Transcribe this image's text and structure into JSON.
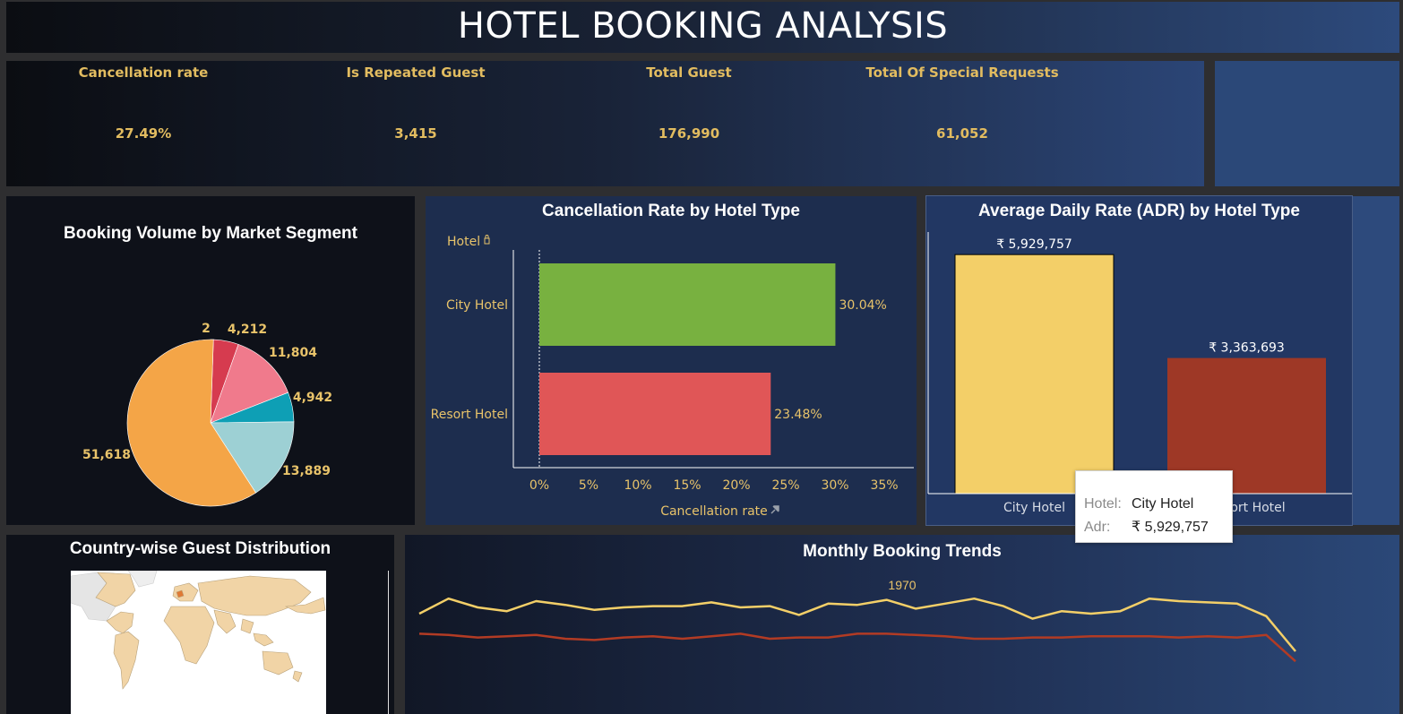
{
  "title": "HOTEL BOOKING ANALYSIS",
  "kpis": [
    {
      "label": "Cancellation rate",
      "value": "27.49%"
    },
    {
      "label": "Is Repeated Guest",
      "value": "3,415"
    },
    {
      "label": "Total Guest",
      "value": "176,990"
    },
    {
      "label": "Total Of Special Requests",
      "value": "61,052"
    }
  ],
  "pie": {
    "title": "Booking Volume by Market Segment",
    "slices": [
      {
        "label": "2",
        "value": 2,
        "color": "#a3c83c"
      },
      {
        "label": "4,212",
        "value": 4212,
        "color": "#d63b4f"
      },
      {
        "label": "11,804",
        "value": 11804,
        "color": "#f07a8c"
      },
      {
        "label": "4,942",
        "value": 4942,
        "color": "#0e9fb5"
      },
      {
        "label": "13,889",
        "value": 13889,
        "color": "#9dd0d4"
      },
      {
        "label": "51,618",
        "value": 51618,
        "color": "#f4a547"
      }
    ]
  },
  "cancel_chart": {
    "title": "Cancellation Rate by Hotel Type",
    "y_header": "Hotel",
    "x_label": "Cancellation rate",
    "ticks": [
      "0%",
      "5%",
      "10%",
      "15%",
      "20%",
      "25%",
      "30%",
      "35%"
    ],
    "bars": [
      {
        "category": "City Hotel",
        "value": 30.04,
        "label": "30.04%",
        "color": "#78b140"
      },
      {
        "category": "Resort Hotel",
        "value": 23.48,
        "label": "23.48%",
        "color": "#e05657"
      }
    ]
  },
  "adr_chart": {
    "title": "Average Daily Rate (ADR) by Hotel Type",
    "bars": [
      {
        "category": "City Hotel",
        "value": 5929757,
        "label": "₹ 5,929,757",
        "color": "#f3cf68"
      },
      {
        "category": "Resort Hotel",
        "value": 3363693,
        "label": "₹ 3,363,693",
        "color": "#9e3826"
      }
    ]
  },
  "tooltip": {
    "hotel_key": "Hotel:",
    "hotel_value": "City Hotel",
    "adr_key": "Adr:",
    "adr_value": "₹ 5,929,757"
  },
  "map": {
    "title": "Country-wise Guest Distribution"
  },
  "trend": {
    "title": "Monthly Booking Trends",
    "year_label": "1970",
    "series": [
      {
        "color": "#f3cf68",
        "values": [
          0.8,
          0.92,
          0.85,
          0.82,
          0.9,
          0.87,
          0.83,
          0.85,
          0.86,
          0.86,
          0.89,
          0.85,
          0.86,
          0.79,
          0.88,
          0.87,
          0.91,
          0.84,
          0.88,
          0.92,
          0.86,
          0.76,
          0.82,
          0.8,
          0.82,
          0.92,
          0.9,
          0.89,
          0.88,
          0.78,
          0.5
        ]
      },
      {
        "color": "#b23b24",
        "values": [
          0.64,
          0.63,
          0.61,
          0.62,
          0.63,
          0.6,
          0.59,
          0.61,
          0.62,
          0.6,
          0.62,
          0.64,
          0.6,
          0.61,
          0.61,
          0.64,
          0.64,
          0.63,
          0.62,
          0.6,
          0.6,
          0.61,
          0.61,
          0.62,
          0.62,
          0.62,
          0.61,
          0.62,
          0.61,
          0.63,
          0.42
        ]
      }
    ]
  }
}
